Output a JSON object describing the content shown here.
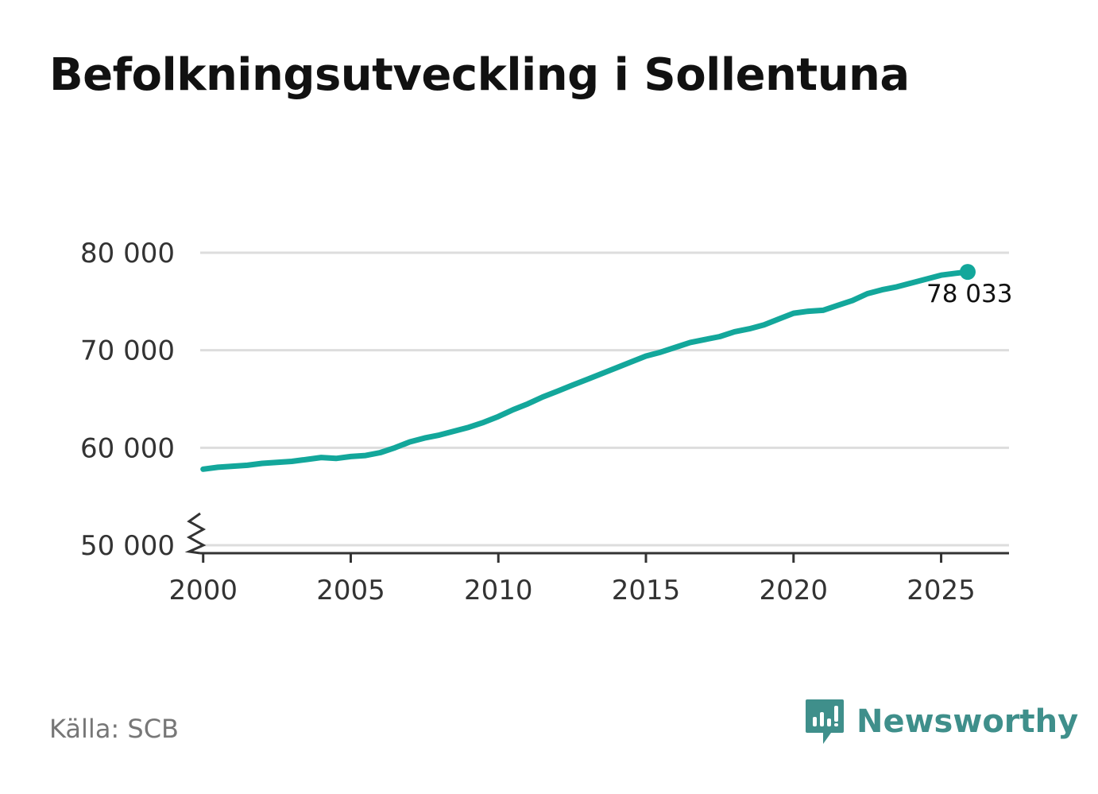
{
  "title": "Befolkningsutveckling i Sollentuna",
  "source": "Källa: SCB",
  "brand": {
    "name": "Newsworthy",
    "icon": "newsworthy-logo-icon",
    "color": "#3f8f8b"
  },
  "colors": {
    "line": "#13a79b",
    "grid": "#dddddd",
    "axis": "#333333",
    "text": "#333333"
  },
  "chart_data": {
    "type": "line",
    "title": "Befolkningsutveckling i Sollentuna",
    "xlabel": "",
    "ylabel": "",
    "xlim": [
      1999.9,
      2027.3
    ],
    "ylim": [
      50000,
      80000
    ],
    "x_ticks": [
      2000,
      2005,
      2010,
      2015,
      2020,
      2025
    ],
    "x_tick_labels": [
      "2000",
      "2005",
      "2010",
      "2015",
      "2020",
      "2025"
    ],
    "y_ticks": [
      50000,
      60000,
      70000,
      80000
    ],
    "y_tick_labels": [
      "50 000",
      "60 000",
      "70 000",
      "80 000"
    ],
    "axis_break": true,
    "grid": true,
    "legend": "none",
    "series": [
      {
        "x": [
          2000.0,
          2000.5,
          2001.0,
          2001.5,
          2002.0,
          2002.5,
          2003.0,
          2003.5,
          2004.0,
          2004.5,
          2005.0,
          2005.5,
          2006.0,
          2006.5,
          2007.0,
          2007.5,
          2008.0,
          2008.5,
          2009.0,
          2009.5,
          2010.0,
          2010.5,
          2011.0,
          2011.5,
          2012.0,
          2012.5,
          2013.0,
          2013.5,
          2014.0,
          2014.5,
          2015.0,
          2015.5,
          2016.0,
          2016.5,
          2017.0,
          2017.5,
          2018.0,
          2018.5,
          2019.0,
          2019.5,
          2020.0,
          2020.5,
          2021.0,
          2021.5,
          2022.0,
          2022.5,
          2023.0,
          2023.5,
          2024.0,
          2024.5,
          2025.0,
          2025.5,
          2025.9
        ],
        "values": [
          57800,
          58000,
          58100,
          58200,
          58400,
          58500,
          58600,
          58800,
          59000,
          58900,
          59100,
          59200,
          59500,
          60000,
          60600,
          61000,
          61300,
          61700,
          62100,
          62600,
          63200,
          63900,
          64500,
          65200,
          65800,
          66400,
          67000,
          67600,
          68200,
          68800,
          69400,
          69800,
          70300,
          70800,
          71100,
          71400,
          71900,
          72200,
          72600,
          73200,
          73800,
          74000,
          74100,
          74600,
          75100,
          75800,
          76200,
          76500,
          76900,
          77300,
          77700,
          77900,
          78033
        ]
      }
    ],
    "end_label": "78 033"
  }
}
